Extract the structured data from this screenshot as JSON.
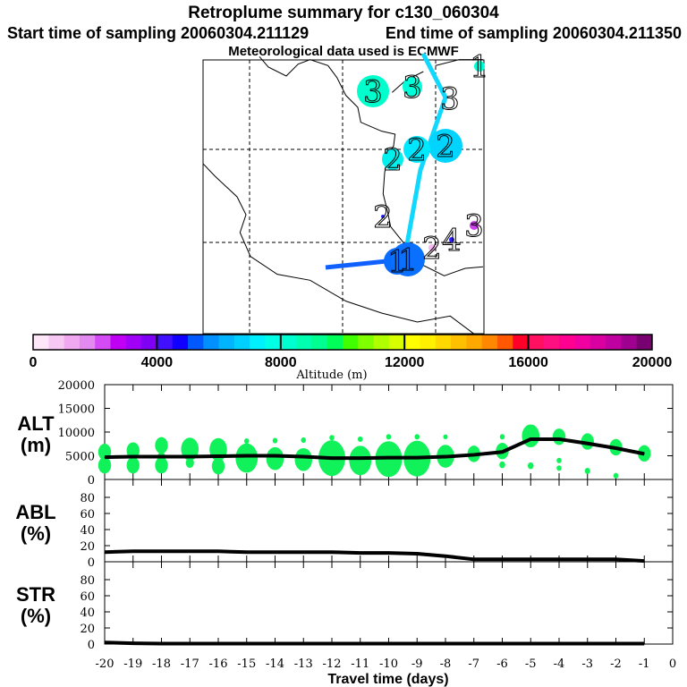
{
  "header": {
    "title": "Retroplume summary for c130_060304",
    "start": "Start time of sampling 20060304.211129",
    "end": "End time of sampling 20060304.211350",
    "met": "Meteorological data used is ECMWF"
  },
  "map": {
    "markers": [
      {
        "label": "3",
        "alt": 8200,
        "color": "#00ffcc"
      },
      {
        "label": "3",
        "alt": 8000,
        "color": "#00ffd8"
      },
      {
        "label": "3",
        "alt": 0,
        "color": "#ffffff"
      },
      {
        "label": "2",
        "alt": 7000,
        "color": "#00d4ff"
      },
      {
        "label": "2",
        "alt": 7300,
        "color": "#00e8ff"
      },
      {
        "label": "2",
        "alt": 7600,
        "color": "#00f0ee"
      },
      {
        "label": "2",
        "alt": 4500,
        "color": "#2020ff"
      },
      {
        "label": "1",
        "alt": 8000,
        "color": "#00ffd8"
      },
      {
        "label": "3",
        "alt": 2500,
        "color": "#d040f0"
      },
      {
        "label": "4",
        "alt": 4200,
        "color": "#3020ff"
      },
      {
        "label": "2",
        "alt": 500,
        "color": "#f8b8f0"
      },
      {
        "label": "1",
        "alt": 5000,
        "color": "#0a6cff"
      },
      {
        "label": "1",
        "alt": 5200,
        "color": "#0a70ff"
      }
    ]
  },
  "colorbar": {
    "label": "Altitude (m)",
    "ticks": [
      "0",
      "4000",
      "8000",
      "12000",
      "16000",
      "20000"
    ],
    "range": [
      0,
      20000
    ],
    "colors": [
      "#fde6f8",
      "#f8c8f5",
      "#f0a8f0",
      "#e38af0",
      "#d44af5",
      "#c000f5",
      "#a000f8",
      "#8000f5",
      "#4010ff",
      "#1000ff",
      "#0058ff",
      "#0090ff",
      "#00b4ff",
      "#00d0ff",
      "#00f0ff",
      "#00ffe4",
      "#00ffd0",
      "#00ffb0",
      "#00ff90",
      "#00ff58",
      "#40ff00",
      "#80ff00",
      "#b0ff00",
      "#d8ff00",
      "#ffff00",
      "#fff000",
      "#ffd800",
      "#ffc000",
      "#ffa800",
      "#ff8800",
      "#ff5800",
      "#ff0028",
      "#ff1060",
      "#ff1080",
      "#ff0090",
      "#f000a0",
      "#d800a0",
      "#c000a0",
      "#a00090",
      "#780070"
    ]
  },
  "chart_data": [
    {
      "type": "line",
      "panel": "ALT",
      "ylabel": [
        "ALT",
        "(m)"
      ],
      "xlabel": "Travel time (days)",
      "ylim": [
        0,
        20000
      ],
      "yticks": [
        "0",
        "5000",
        "10000",
        "15000",
        "20000"
      ],
      "x": [
        -20,
        -19,
        -18,
        -17,
        -16,
        -15,
        -14,
        -13,
        -12,
        -11,
        -10,
        -9,
        -8,
        -7,
        -6,
        -5,
        -4,
        -3,
        -2,
        -1
      ],
      "values": [
        4700,
        4800,
        4800,
        4800,
        4900,
        5000,
        5000,
        4800,
        4500,
        4500,
        4600,
        4600,
        4800,
        5200,
        5800,
        8500,
        8500,
        7600,
        6600,
        5400
      ],
      "clusters": [
        {
          "day": -20,
          "alt": 5800,
          "w": 2
        },
        {
          "day": -20,
          "alt": 3000,
          "w": 2
        },
        {
          "day": -19,
          "alt": 6100,
          "w": 2
        },
        {
          "day": -19,
          "alt": 3000,
          "w": 2
        },
        {
          "day": -18,
          "alt": 7200,
          "w": 2
        },
        {
          "day": -18,
          "alt": 4700,
          "w": 1
        },
        {
          "day": -18,
          "alt": 3000,
          "w": 2
        },
        {
          "day": -17,
          "alt": 6400,
          "w": 3
        },
        {
          "day": -17,
          "alt": 3500,
          "w": 1
        },
        {
          "day": -16,
          "alt": 6300,
          "w": 3
        },
        {
          "day": -16,
          "alt": 2800,
          "w": 2
        },
        {
          "day": -15,
          "alt": 4500,
          "w": 4
        },
        {
          "day": -15,
          "alt": 8100,
          "w": 0.3
        },
        {
          "day": -14,
          "alt": 4400,
          "w": 3
        },
        {
          "day": -14,
          "alt": 8200,
          "w": 0.3
        },
        {
          "day": -13,
          "alt": 4200,
          "w": 3
        },
        {
          "day": -13,
          "alt": 8300,
          "w": 0.3
        },
        {
          "day": -12,
          "alt": 4500,
          "w": 5
        },
        {
          "day": -12,
          "alt": 8800,
          "w": 0.3
        },
        {
          "day": -11,
          "alt": 4000,
          "w": 4
        },
        {
          "day": -11,
          "alt": 8500,
          "w": 0.3
        },
        {
          "day": -10,
          "alt": 4300,
          "w": 5
        },
        {
          "day": -10,
          "alt": 9000,
          "w": 0.3
        },
        {
          "day": -9,
          "alt": 4400,
          "w": 5
        },
        {
          "day": -9,
          "alt": 9000,
          "w": 0.3
        },
        {
          "day": -8,
          "alt": 4900,
          "w": 3
        },
        {
          "day": -8,
          "alt": 9000,
          "w": 0.2
        },
        {
          "day": -7,
          "alt": 5400,
          "w": 2
        },
        {
          "day": -6,
          "alt": 6000,
          "w": 2
        },
        {
          "day": -6,
          "alt": 9000,
          "w": 0.3
        },
        {
          "day": -6,
          "alt": 3100,
          "w": 0.5
        },
        {
          "day": -5,
          "alt": 9200,
          "w": 3
        },
        {
          "day": -5,
          "alt": 2900,
          "w": 0.5
        },
        {
          "day": -4,
          "alt": 9000,
          "w": 2
        },
        {
          "day": -4,
          "alt": 4000,
          "w": 0.3
        },
        {
          "day": -4,
          "alt": 2400,
          "w": 0.3
        },
        {
          "day": -3,
          "alt": 8000,
          "w": 2
        },
        {
          "day": -3,
          "alt": 1800,
          "w": 0.4
        },
        {
          "day": -2,
          "alt": 6800,
          "w": 2
        },
        {
          "day": -2,
          "alt": 800,
          "w": 0.3
        },
        {
          "day": -1,
          "alt": 5500,
          "w": 2
        }
      ]
    },
    {
      "type": "line",
      "panel": "ABL",
      "ylabel": [
        "ABL",
        "(%)"
      ],
      "ylim": [
        0,
        100
      ],
      "yticks": [
        "0",
        "20",
        "40",
        "60",
        "80"
      ],
      "x": [
        -20,
        -19,
        -18,
        -17,
        -16,
        -15,
        -14,
        -13,
        -12,
        -11,
        -10,
        -9,
        -8,
        -7,
        -6,
        -5,
        -4,
        -3,
        -2,
        -1
      ],
      "values": [
        12,
        13,
        13,
        13,
        13,
        12,
        12,
        12,
        12,
        11,
        11,
        10,
        7,
        3,
        3,
        3,
        3,
        3,
        3,
        1
      ]
    },
    {
      "type": "line",
      "panel": "STR",
      "ylabel": [
        "STR",
        "(%)"
      ],
      "ylim": [
        0,
        100
      ],
      "yticks": [
        "0",
        "20",
        "40",
        "60",
        "80"
      ],
      "x": [
        -20,
        -19,
        -18,
        -17,
        -16,
        -15,
        -14,
        -13,
        -12,
        -11,
        -10,
        -9,
        -8,
        -7,
        -6,
        -5,
        -4,
        -3,
        -2,
        -1
      ],
      "values": [
        2,
        1,
        0.5,
        0.5,
        0.5,
        0.5,
        0.5,
        0.5,
        0.5,
        0.5,
        0.5,
        0.5,
        0.5,
        0.5,
        0.5,
        0.5,
        0.5,
        0.5,
        0.5,
        0.5
      ]
    }
  ],
  "xaxis": {
    "label": "Travel time (days)",
    "ticks": [
      "-20",
      "-19",
      "-18",
      "-17",
      "-16",
      "-15",
      "-14",
      "-13",
      "-12",
      "-11",
      "-10",
      "-9",
      "-8",
      "-7",
      "-6",
      "-5",
      "-4",
      "-3",
      "-2",
      "-1",
      "0"
    ]
  }
}
